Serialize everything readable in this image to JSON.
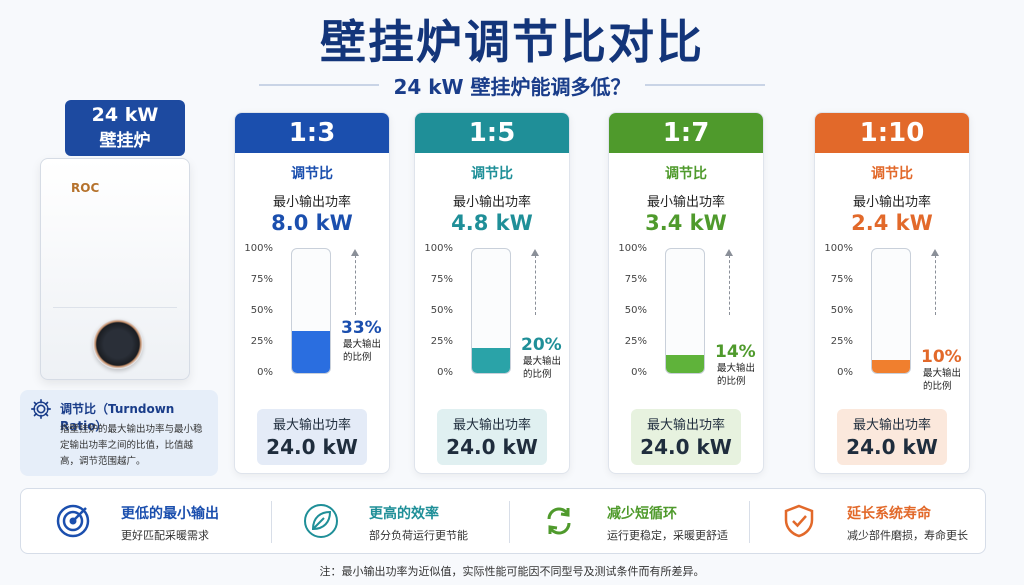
{
  "title": "壁挂炉调节比对比",
  "subtitle": "24 kW 壁挂炉能调多低？",
  "boiler": {
    "label_line1": "24 kW",
    "label_line2": "壁挂炉",
    "brand": "ROC"
  },
  "info": {
    "title": "调节比（Turndown Ratio）",
    "desc": "指壁挂炉的最大输出功率与最小稳定输出功率之间的比值，比值越高，调节范围越广。",
    "icon": "gear-icon"
  },
  "ticks": [
    "100%",
    "75%",
    "50%",
    "25%",
    "0%"
  ],
  "cards": [
    {
      "ratio": "1:3",
      "ratio_label": "调节比",
      "min_label": "最小输出功率",
      "min_value": "8.0 kW",
      "percent": 33,
      "percent_text": "33%",
      "pct_label_1": "最大输出",
      "pct_label_2": "的比例",
      "max_label": "最大输出功率",
      "max_value": "24.0 kW",
      "color": "#1b4fae",
      "fill": "#2a6ee0",
      "box_bg": "#e4ebf7"
    },
    {
      "ratio": "1:5",
      "ratio_label": "调节比",
      "min_label": "最小输出功率",
      "min_value": "4.8 kW",
      "percent": 20,
      "percent_text": "20%",
      "pct_label_1": "最大输出",
      "pct_label_2": "的比例",
      "max_label": "最大输出功率",
      "max_value": "24.0 kW",
      "color": "#1f8f98",
      "fill": "#2aa3a8",
      "box_bg": "#e0f0f1"
    },
    {
      "ratio": "1:7",
      "ratio_label": "调节比",
      "min_label": "最小输出功率",
      "min_value": "3.4 kW",
      "percent": 14,
      "percent_text": "14%",
      "pct_label_1": "最大输出",
      "pct_label_2": "的比例",
      "max_label": "最大输出功率",
      "max_value": "24.0 kW",
      "color": "#4f9a2c",
      "fill": "#5fb33a",
      "box_bg": "#e7f2df"
    },
    {
      "ratio": "1:10",
      "ratio_label": "调节比",
      "min_label": "最小输出功率",
      "min_value": "2.4 kW",
      "percent": 10,
      "percent_text": "10%",
      "pct_label_1": "最大输出",
      "pct_label_2": "的比例",
      "max_label": "最大输出功率",
      "max_value": "24.0 kW",
      "color": "#e2692a",
      "fill": "#f07f2e",
      "box_bg": "#fbe8dc"
    }
  ],
  "benefits": [
    {
      "title": "更低的最小输出",
      "desc": "更好匹配采暖需求",
      "icon": "target-icon",
      "color": "#1b4fae"
    },
    {
      "title": "更高的效率",
      "desc": "部分负荷运行更节能",
      "icon": "leaf-icon",
      "color": "#1f8f98"
    },
    {
      "title": "减少短循环",
      "desc": "运行更稳定，采暖更舒适",
      "icon": "cycle-icon",
      "color": "#4f9a2c"
    },
    {
      "title": "延长系统寿命",
      "desc": "减少部件磨损，寿命更长",
      "icon": "shield-check-icon",
      "color": "#e2692a"
    }
  ],
  "note": "注：最小输出功率为近似值，实际性能可能因不同型号及测试条件而有所差异。"
}
